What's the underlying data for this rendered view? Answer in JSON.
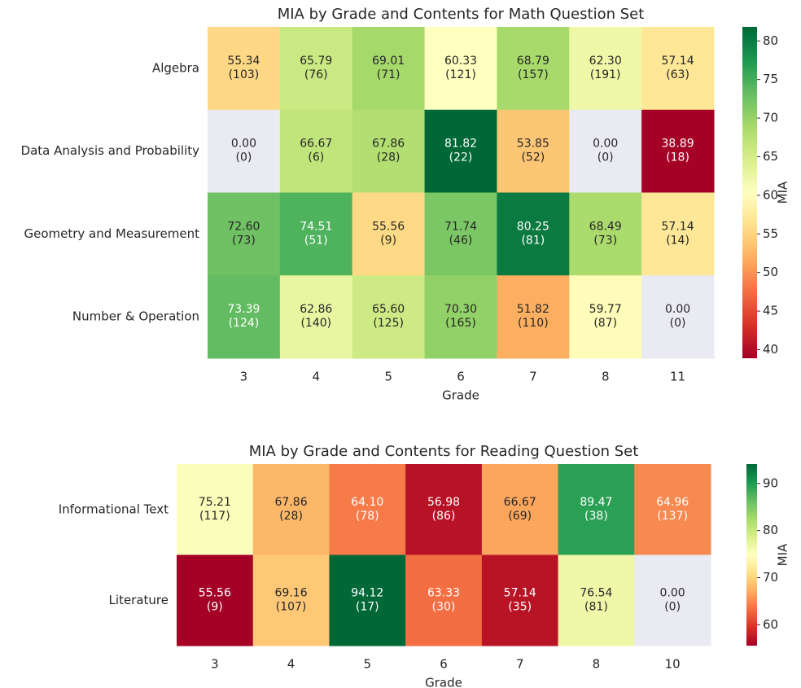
{
  "chart_data": [
    {
      "type": "heatmap",
      "title": "MIA by Grade and Contents for Math Question Set",
      "xlabel": "Grade",
      "colorbar_label": "MIA",
      "colormap": "RdYlGn",
      "missing_color": "#eaeaf2",
      "x_categories": [
        "3",
        "4",
        "5",
        "6",
        "7",
        "8",
        "11"
      ],
      "y_categories": [
        "Algebra",
        "Data Analysis and Probability",
        "Geometry and Measurement",
        "Number & Operation"
      ],
      "values": [
        [
          55.34,
          65.79,
          69.01,
          60.33,
          68.79,
          62.3,
          57.14
        ],
        [
          0,
          66.67,
          67.86,
          81.82,
          53.85,
          0,
          38.89
        ],
        [
          72.6,
          74.51,
          55.56,
          71.74,
          80.25,
          68.49,
          57.14
        ],
        [
          73.39,
          62.86,
          65.6,
          70.3,
          51.82,
          59.77,
          0
        ]
      ],
      "value_labels": [
        [
          "55.34",
          "65.79",
          "69.01",
          "60.33",
          "68.79",
          "62.30",
          "57.14"
        ],
        [
          "0.00",
          "66.67",
          "67.86",
          "81.82",
          "53.85",
          "0.00",
          "38.89"
        ],
        [
          "72.60",
          "74.51",
          "55.56",
          "71.74",
          "80.25",
          "68.49",
          "57.14"
        ],
        [
          "73.39",
          "62.86",
          "65.60",
          "70.30",
          "51.82",
          "59.77",
          "0.00"
        ]
      ],
      "counts": [
        [
          103,
          76,
          71,
          121,
          157,
          191,
          63
        ],
        [
          0,
          6,
          28,
          22,
          52,
          0,
          18
        ],
        [
          73,
          51,
          9,
          46,
          81,
          73,
          14
        ],
        [
          124,
          140,
          125,
          165,
          110,
          87,
          0
        ]
      ],
      "count_labels": [
        [
          "(103)",
          "(76)",
          "(71)",
          "(121)",
          "(157)",
          "(191)",
          "(63)"
        ],
        [
          "(0)",
          "(6)",
          "(28)",
          "(22)",
          "(52)",
          "(0)",
          "(18)"
        ],
        [
          "(73)",
          "(51)",
          "(9)",
          "(46)",
          "(81)",
          "(73)",
          "(14)"
        ],
        [
          "(124)",
          "(140)",
          "(125)",
          "(165)",
          "(110)",
          "(87)",
          "(0)"
        ]
      ],
      "clim": [
        38.89,
        81.82
      ],
      "cticks": [
        40,
        45,
        50,
        55,
        60,
        65,
        70,
        75,
        80
      ]
    },
    {
      "type": "heatmap",
      "title": "MIA by Grade and Contents for Reading Question Set",
      "xlabel": "Grade",
      "colorbar_label": "MIA",
      "colormap": "RdYlGn",
      "missing_color": "#eaeaf2",
      "x_categories": [
        "3",
        "4",
        "5",
        "6",
        "7",
        "8",
        "10"
      ],
      "y_categories": [
        "Informational Text",
        "Literature"
      ],
      "values": [
        [
          75.21,
          67.86,
          64.1,
          56.98,
          66.67,
          89.47,
          64.96
        ],
        [
          55.56,
          69.16,
          94.12,
          63.33,
          57.14,
          76.54,
          0
        ]
      ],
      "value_labels": [
        [
          "75.21",
          "67.86",
          "64.10",
          "56.98",
          "66.67",
          "89.47",
          "64.96"
        ],
        [
          "55.56",
          "69.16",
          "94.12",
          "63.33",
          "57.14",
          "76.54",
          "0.00"
        ]
      ],
      "counts": [
        [
          117,
          28,
          78,
          86,
          69,
          38,
          137
        ],
        [
          9,
          107,
          17,
          30,
          35,
          81,
          0
        ]
      ],
      "count_labels": [
        [
          "(117)",
          "(28)",
          "(78)",
          "(86)",
          "(69)",
          "(38)",
          "(137)"
        ],
        [
          "(9)",
          "(107)",
          "(17)",
          "(30)",
          "(35)",
          "(81)",
          "(0)"
        ]
      ],
      "clim": [
        55.56,
        94.12
      ],
      "cticks": [
        60,
        70,
        80,
        90
      ]
    }
  ]
}
